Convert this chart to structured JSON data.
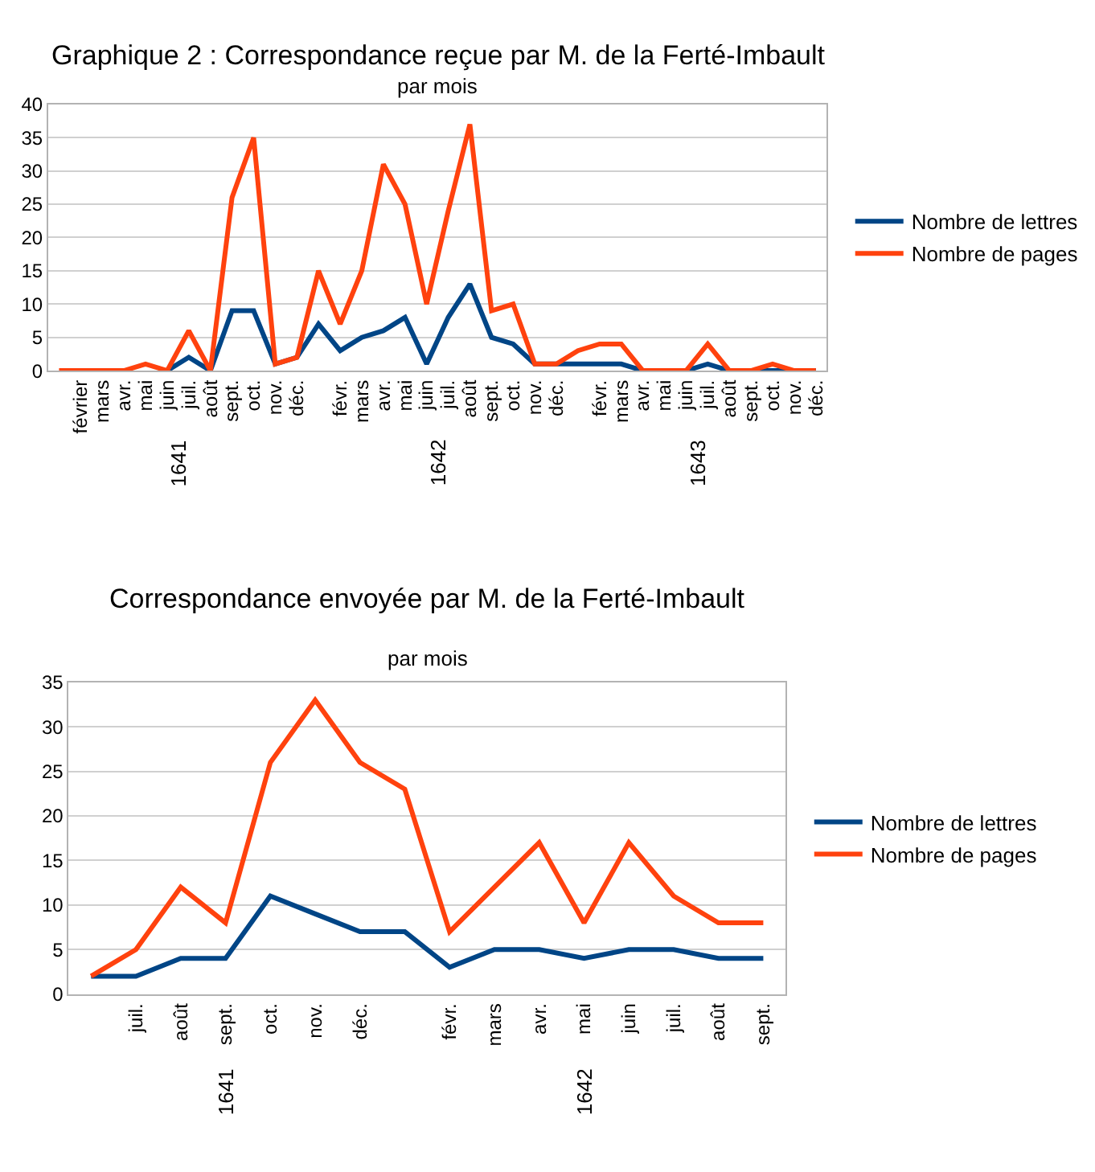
{
  "chart_data": [
    {
      "type": "line",
      "title": "Graphique 2 : Correspondance reçue par M. de la Ferté-Imbault",
      "subtitle": "par mois",
      "categories": [
        null,
        "février",
        "mars",
        "avr.",
        "mai",
        "juin",
        "juil.",
        "août",
        "sept.",
        "oct.",
        "nov.",
        "déc.",
        null,
        "févr.",
        "mars",
        "avr.",
        "mai",
        "juin",
        "juil.",
        "août",
        "sept.",
        "oct.",
        "nov.",
        "déc.",
        null,
        "févr.",
        "mars",
        "avr.",
        "mai",
        "juin",
        "juil.",
        "août",
        "sept.",
        "oct.",
        "nov.",
        "déc."
      ],
      "annotations": [
        "1641",
        "1642",
        "1643"
      ],
      "series": [
        {
          "name": "Nombre de lettres",
          "color": "#004586",
          "values": [
            null,
            null,
            null,
            null,
            null,
            0,
            2,
            0,
            9,
            9,
            1,
            2,
            7,
            3,
            5,
            6,
            8,
            1,
            8,
            13,
            5,
            4,
            1,
            1,
            1,
            1,
            1,
            0,
            0,
            0,
            1,
            0,
            0,
            0,
            0,
            0
          ]
        },
        {
          "name": "Nombre de pages",
          "color": "#ff420e",
          "values": [
            0,
            0,
            0,
            0,
            1,
            0,
            6,
            0,
            26,
            35,
            1,
            2,
            15,
            7,
            15,
            31,
            25,
            10,
            24,
            37,
            9,
            10,
            1,
            1,
            3,
            4,
            4,
            0,
            0,
            0,
            4,
            0,
            0,
            1,
            0,
            0
          ]
        }
      ],
      "ylim": [
        0,
        40
      ],
      "yticks": [
        0,
        5,
        10,
        15,
        20,
        25,
        30,
        35,
        40
      ],
      "grid": "y",
      "legend": "right",
      "line_style": "solid",
      "marker": "none"
    },
    {
      "type": "line",
      "title": "Correspondance envoyée par M. de la Ferté-Imbault",
      "subtitle": "par mois",
      "categories": [
        null,
        "juil.",
        "août",
        "sept.",
        "oct.",
        "nov.",
        "déc.",
        null,
        "févr.",
        "mars",
        "avr.",
        "mai",
        "juin",
        "juil.",
        "août",
        "sept."
      ],
      "annotations": [
        "1641",
        "1642"
      ],
      "series": [
        {
          "name": "Nombre de lettres",
          "color": "#004586",
          "values": [
            2,
            2,
            4,
            4,
            11,
            9,
            7,
            7,
            3,
            5,
            5,
            4,
            5,
            5,
            4,
            4
          ]
        },
        {
          "name": "Nombre de pages",
          "color": "#ff420e",
          "values": [
            2,
            5,
            12,
            8,
            26,
            33,
            26,
            23,
            7,
            12,
            17,
            8,
            17,
            11,
            8,
            8
          ]
        }
      ],
      "ylim": [
        0,
        35
      ],
      "yticks": [
        0,
        5,
        10,
        15,
        20,
        25,
        30,
        35
      ],
      "grid": "y",
      "legend": "right",
      "line_style": "solid",
      "marker": "none"
    }
  ]
}
